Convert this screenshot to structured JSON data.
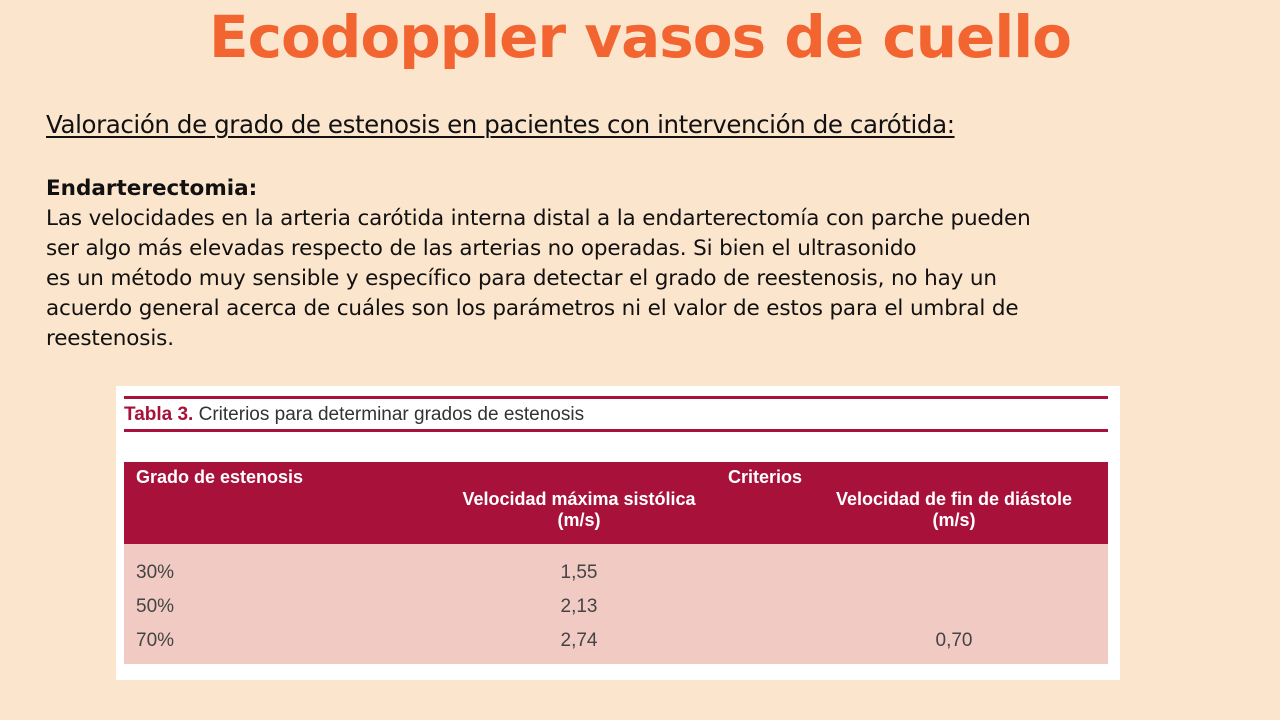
{
  "slide": {
    "title": "Ecodoppler vasos de cuello",
    "subtitle": "Valoración de grado de estenosis en pacientes con intervención de carótida:"
  },
  "section": {
    "heading": "Endarterectomia:",
    "lines": [
      "Las velocidades en la arteria carótida interna distal a la endarterectomía con parche pueden",
      "ser algo más elevadas respecto de las arterias no operadas. Si bien el ultrasonido",
      "es un método muy sensible y específico para detectar el grado de reestenosis, no hay un",
      "acuerdo general acerca de cuáles son los parámetros ni el valor de estos para el umbral de",
      "reestenosis."
    ]
  },
  "table": {
    "caption_label": "Tabla 3.",
    "caption_text": "Criterios para determinar grados de estenosis",
    "accent_color": "#a8123a",
    "headers": {
      "grado": "Grado de estenosis",
      "criterios": "Criterios",
      "vmax_line1": "Velocidad máxima sistólica",
      "vmax_line2": "(m/s)",
      "vfin_line1": "Velocidad de fin de diástole",
      "vfin_line2": "(m/s)"
    },
    "rows": [
      {
        "grado": "30%",
        "vmax": "1,55",
        "vfin": ""
      },
      {
        "grado": "50%",
        "vmax": "2,13",
        "vfin": ""
      },
      {
        "grado": "70%",
        "vmax": "2,74",
        "vfin": "0,70"
      }
    ]
  }
}
